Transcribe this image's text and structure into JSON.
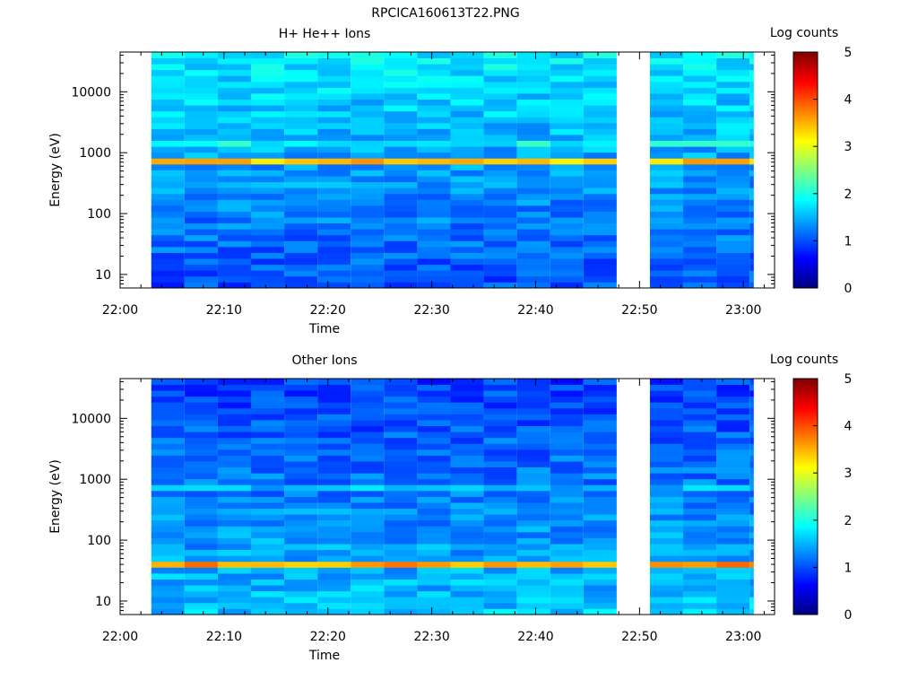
{
  "figure_title": "RPCICA160613T22.PNG",
  "chart_data": [
    {
      "type": "heatmap",
      "title": "H+ He++ Ions",
      "xlabel": "Time",
      "ylabel": "Energy (eV)",
      "x_ticks": [
        "22:00",
        "22:10",
        "22:20",
        "22:30",
        "22:40",
        "22:50",
        "23:00"
      ],
      "y_ticks": [
        "10",
        "100",
        "1000",
        "10000"
      ],
      "y_scale": "log",
      "xlim": [
        "22:00",
        "23:03"
      ],
      "ylim": [
        6,
        45000
      ],
      "data_columns_start": "22:03",
      "data_columns_end": "23:01",
      "gap": [
        "22:48",
        "22:51"
      ],
      "column_width_min": 3.2,
      "bands": [
        {
          "energy_center": 750,
          "log_counts": 3.6
        },
        {
          "energy_center": 1500,
          "log_counts": 2.2
        },
        {
          "energy_center": 45,
          "log_counts": 1.9
        }
      ],
      "background_log_counts_high_energy": 1.8,
      "background_log_counts_low_energy": 1.0,
      "colorbar": {
        "label": "Log counts",
        "min": 0,
        "max": 5,
        "ticks": [
          "0",
          "1",
          "2",
          "3",
          "4",
          "5"
        ]
      }
    },
    {
      "type": "heatmap",
      "title": "Other Ions",
      "xlabel": "Time",
      "ylabel": "Energy (eV)",
      "x_ticks": [
        "22:00",
        "22:10",
        "22:20",
        "22:30",
        "22:40",
        "22:50",
        "23:00"
      ],
      "y_ticks": [
        "10",
        "100",
        "1000",
        "10000"
      ],
      "y_scale": "log",
      "xlim": [
        "22:00",
        "23:03"
      ],
      "ylim": [
        6,
        45000
      ],
      "data_columns_start": "22:03",
      "data_columns_end": "23:01",
      "gap": [
        "22:48",
        "22:51"
      ],
      "column_width_min": 3.2,
      "bands": [
        {
          "energy_center": 40,
          "log_counts": 3.6
        },
        {
          "energy_center": 800,
          "log_counts": 2.4
        }
      ],
      "background_log_counts_high_energy": 0.9,
      "background_log_counts_low_energy": 1.6,
      "colorbar": {
        "label": "Log counts",
        "min": 0,
        "max": 5,
        "ticks": [
          "0",
          "1",
          "2",
          "3",
          "4",
          "5"
        ]
      }
    }
  ]
}
